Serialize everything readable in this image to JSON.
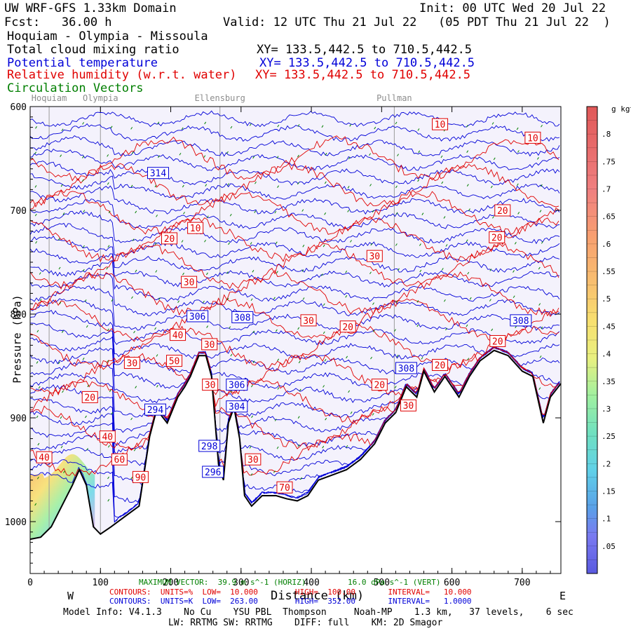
{
  "header": {
    "domain": "UW WRF-GFS 1.33km Domain",
    "init": "Init: 00 UTC Wed 20 Jul 22",
    "fcst": "Fcst:   36.00 h",
    "valid": "Valid: 12 UTC Thu 21 Jul 22   (05 PDT Thu 21 Jul 22  )",
    "transect": "Hoquiam - Olympia - Missoula"
  },
  "fields": [
    {
      "name": "Total cloud mixing ratio",
      "xy": "XY= 133.5,442.5 to 710.5,442.5",
      "color": "#000000"
    },
    {
      "name": "Potential temperature",
      "xy": "XY= 133.5,442.5 to 710.5,442.5",
      "color": "#0000d8"
    },
    {
      "name": "Relative humidity (w.r.t. water)",
      "xy": "XY= 133.5,442.5 to 710.5,442.5",
      "color": "#e00000"
    },
    {
      "name": "Circulation Vectors",
      "xy": "",
      "color": "#007f00"
    }
  ],
  "chart_data": {
    "type": "cross-section contour",
    "title": "Hoquiam - Olympia - Missoula",
    "xlabel": "Distance (km)",
    "ylabel": "Pressure (hPa)",
    "xlim": [
      0,
      755
    ],
    "ylim": [
      1050,
      600
    ],
    "x_ticks": [
      "0",
      "100",
      "200",
      "300",
      "400",
      "500",
      "600",
      "700"
    ],
    "x_tick_values": [
      0,
      100,
      200,
      300,
      400,
      500,
      600,
      700
    ],
    "y_ticks": [
      "600",
      "700",
      "800",
      "900",
      "1000"
    ],
    "y_tick_values": [
      600,
      700,
      800,
      900,
      1000
    ],
    "direction_left": "W",
    "direction_right": "E",
    "locations": [
      {
        "name": "Hoquiam",
        "km": 27
      },
      {
        "name": "Olympia",
        "km": 100
      },
      {
        "name": "Ellensburg",
        "km": 270
      },
      {
        "name": "Pullman",
        "km": 518
      }
    ],
    "terrain_hpa": [
      {
        "km": 0,
        "p": 1017
      },
      {
        "km": 15,
        "p": 1015
      },
      {
        "km": 30,
        "p": 1005
      },
      {
        "km": 45,
        "p": 985
      },
      {
        "km": 60,
        "p": 965
      },
      {
        "km": 70,
        "p": 950
      },
      {
        "km": 80,
        "p": 965
      },
      {
        "km": 90,
        "p": 1005
      },
      {
        "km": 100,
        "p": 1012
      },
      {
        "km": 115,
        "p": 1005
      },
      {
        "km": 135,
        "p": 995
      },
      {
        "km": 155,
        "p": 985
      },
      {
        "km": 170,
        "p": 918
      },
      {
        "km": 180,
        "p": 892
      },
      {
        "km": 195,
        "p": 905
      },
      {
        "km": 210,
        "p": 880
      },
      {
        "km": 220,
        "p": 870
      },
      {
        "km": 228,
        "p": 860
      },
      {
        "km": 240,
        "p": 840
      },
      {
        "km": 250,
        "p": 840
      },
      {
        "km": 258,
        "p": 860
      },
      {
        "km": 268,
        "p": 945
      },
      {
        "km": 275,
        "p": 960
      },
      {
        "km": 282,
        "p": 905
      },
      {
        "km": 290,
        "p": 890
      },
      {
        "km": 298,
        "p": 920
      },
      {
        "km": 305,
        "p": 975
      },
      {
        "km": 315,
        "p": 985
      },
      {
        "km": 330,
        "p": 975
      },
      {
        "km": 350,
        "p": 975
      },
      {
        "km": 365,
        "p": 978
      },
      {
        "km": 380,
        "p": 980
      },
      {
        "km": 395,
        "p": 975
      },
      {
        "km": 410,
        "p": 960
      },
      {
        "km": 430,
        "p": 955
      },
      {
        "km": 450,
        "p": 950
      },
      {
        "km": 470,
        "p": 940
      },
      {
        "km": 490,
        "p": 925
      },
      {
        "km": 505,
        "p": 905
      },
      {
        "km": 520,
        "p": 895
      },
      {
        "km": 535,
        "p": 870
      },
      {
        "km": 550,
        "p": 880
      },
      {
        "km": 560,
        "p": 855
      },
      {
        "km": 575,
        "p": 875
      },
      {
        "km": 590,
        "p": 860
      },
      {
        "km": 610,
        "p": 880
      },
      {
        "km": 625,
        "p": 860
      },
      {
        "km": 640,
        "p": 845
      },
      {
        "km": 660,
        "p": 835
      },
      {
        "km": 680,
        "p": 840
      },
      {
        "km": 700,
        "p": 855
      },
      {
        "km": 715,
        "p": 860
      },
      {
        "km": 730,
        "p": 905
      },
      {
        "km": 740,
        "p": 880
      },
      {
        "km": 755,
        "p": 867
      }
    ],
    "theta_labels": [
      {
        "text": "314",
        "km": 182,
        "p": 664
      },
      {
        "text": "306",
        "km": 238,
        "p": 802
      },
      {
        "text": "308",
        "km": 302,
        "p": 803
      },
      {
        "text": "306",
        "km": 294,
        "p": 868
      },
      {
        "text": "304",
        "km": 294,
        "p": 889
      },
      {
        "text": "298",
        "km": 255,
        "p": 927
      },
      {
        "text": "296",
        "km": 260,
        "p": 952
      },
      {
        "text": "308",
        "km": 535,
        "p": 852
      },
      {
        "text": "308",
        "km": 698,
        "p": 806
      },
      {
        "text": "294",
        "km": 178,
        "p": 892
      }
    ],
    "rh_labels": [
      {
        "text": "10",
        "km": 583,
        "p": 617
      },
      {
        "text": "10",
        "km": 715,
        "p": 630
      },
      {
        "text": "20",
        "km": 672,
        "p": 700
      },
      {
        "text": "20",
        "km": 664,
        "p": 726
      },
      {
        "text": "10",
        "km": 235,
        "p": 717
      },
      {
        "text": "20",
        "km": 198,
        "p": 727
      },
      {
        "text": "30",
        "km": 490,
        "p": 744
      },
      {
        "text": "30",
        "km": 226,
        "p": 769
      },
      {
        "text": "30",
        "km": 396,
        "p": 806
      },
      {
        "text": "20",
        "km": 452,
        "p": 812
      },
      {
        "text": "20",
        "km": 665,
        "p": 826
      },
      {
        "text": "40",
        "km": 210,
        "p": 820
      },
      {
        "text": "50",
        "km": 205,
        "p": 845
      },
      {
        "text": "30",
        "km": 255,
        "p": 829
      },
      {
        "text": "30",
        "km": 145,
        "p": 847
      },
      {
        "text": "20",
        "km": 583,
        "p": 849
      },
      {
        "text": "20",
        "km": 497,
        "p": 868
      },
      {
        "text": "20",
        "km": 85,
        "p": 880
      },
      {
        "text": "30",
        "km": 256,
        "p": 868
      },
      {
        "text": "30",
        "km": 538,
        "p": 888
      },
      {
        "text": "40",
        "km": 110,
        "p": 918
      },
      {
        "text": "60",
        "km": 127,
        "p": 940
      },
      {
        "text": "30",
        "km": 317,
        "p": 940
      },
      {
        "text": "40",
        "km": 20,
        "p": 938
      },
      {
        "text": "90",
        "km": 157,
        "p": 957
      },
      {
        "text": "70",
        "km": 362,
        "p": 967
      }
    ],
    "colorbar": {
      "units": "g kg^-1",
      "labels": [
        ".05",
        ".1",
        ".15",
        ".2",
        ".25",
        ".3",
        ".35",
        ".4",
        ".45",
        ".5",
        ".55",
        ".6",
        ".65",
        ".7",
        ".75",
        ".8"
      ],
      "values": [
        0.05,
        0.1,
        0.15,
        0.2,
        0.25,
        0.3,
        0.35,
        0.4,
        0.45,
        0.5,
        0.55,
        0.6,
        0.65,
        0.7,
        0.75,
        0.8
      ],
      "range": [
        0.0,
        0.85
      ]
    }
  },
  "footer": {
    "max_vector": "MAXIMUM VECTOR:  39.9 m s^-1 (HORIZ)         16.0 dPa s^-1 (VERT)",
    "red_contours": "CONTOURS:  UNITS=%  LOW=  10.000        HIGH=  100.00       INTERVAL=   10.000",
    "blue_contours": "CONTOURS:  UNITS=K  LOW=  263.00        HIGH=  352.00       INTERVAL=   1.0000",
    "model_info": "Model Info: V4.1.3    No Cu    YSU PBL  Thompson     Noah-MP    1.3 km,   37 levels,    6 sec",
    "physics": "LW: RRTMG SW: RRTMG    DIFF: full    KM: 2D Smagor"
  }
}
